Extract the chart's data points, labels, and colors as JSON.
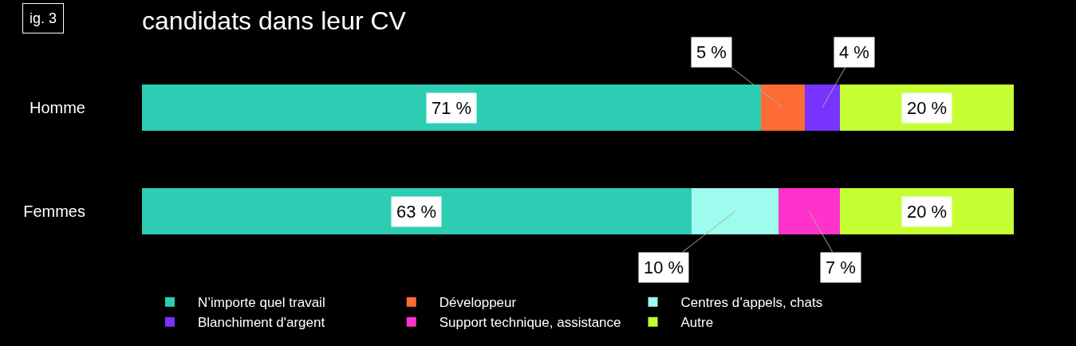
{
  "chart_data": {
    "type": "bar",
    "orientation": "horizontal",
    "stacked": true,
    "title": "candidats dans leur CV",
    "annotations": [
      "ig. 3"
    ],
    "categories": [
      "Homme",
      "Femmes"
    ],
    "tick_labels": "y",
    "legend": "bottom",
    "series": [
      {
        "name": "N’importe quel travail",
        "color": "#2dcdb4",
        "values": [
          71,
          63
        ],
        "value_labels": [
          "71 %",
          "63 %"
        ]
      },
      {
        "name": "Développeur",
        "color": "#ff6b35",
        "values": [
          5,
          null
        ],
        "value_labels": [
          "5 %",
          null
        ]
      },
      {
        "name": "Centres d’appels, chats",
        "color": "#9dfced",
        "values": [
          null,
          10
        ],
        "value_labels": [
          null,
          "10 %"
        ]
      },
      {
        "name": "Blanchiment d'argent",
        "color": "#7733ff",
        "values": [
          4,
          null
        ],
        "value_labels": [
          "4 %",
          null
        ]
      },
      {
        "name": "Support technique, assistance",
        "color": "#ff33cc",
        "values": [
          null,
          7
        ],
        "value_labels": [
          null,
          "7 %"
        ]
      },
      {
        "name": "Autre",
        "color": "#c5ff33",
        "values": [
          20,
          20
        ],
        "value_labels": [
          "20 %",
          "20 %"
        ]
      }
    ]
  }
}
